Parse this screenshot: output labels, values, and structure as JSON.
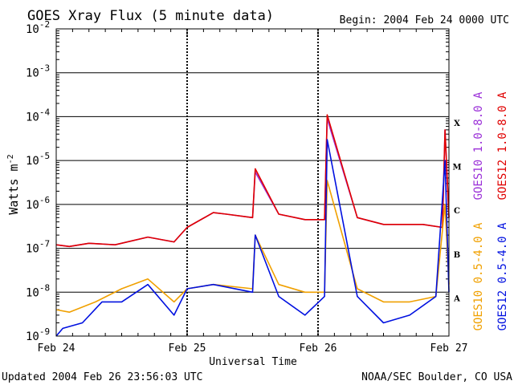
{
  "chart_data": {
    "type": "line",
    "title": "GOES Xray Flux (5 minute data)",
    "begin_label": "Begin:  2004 Feb 24 0000 UTC",
    "xlabel": "Universal Time",
    "ylabel": "Watts m",
    "ylabel_sup": "-2",
    "y_scale": "log",
    "ylim": [
      1e-09,
      0.01
    ],
    "y_ticks": [
      {
        "base": "10",
        "exp": "-2"
      },
      {
        "base": "10",
        "exp": "-3"
      },
      {
        "base": "10",
        "exp": "-4"
      },
      {
        "base": "10",
        "exp": "-5"
      },
      {
        "base": "10",
        "exp": "-6"
      },
      {
        "base": "10",
        "exp": "-7"
      },
      {
        "base": "10",
        "exp": "-8"
      },
      {
        "base": "10",
        "exp": "-9"
      }
    ],
    "xlim_days": [
      0,
      3
    ],
    "x_ticks": [
      "Feb 24",
      "Feb 25",
      "Feb 26",
      "Feb 27"
    ],
    "flare_classes": [
      {
        "label": "X",
        "value": 0.0001
      },
      {
        "label": "M",
        "value": 1e-05
      },
      {
        "label": "C",
        "value": 1e-06
      },
      {
        "label": "B",
        "value": 1e-07
      },
      {
        "label": "A",
        "value": 1e-08
      }
    ],
    "grid": true,
    "series": [
      {
        "name": "GOES10 1.0-8.0 A",
        "color": "#9b30d8",
        "x": [
          0,
          0.1,
          0.25,
          0.45,
          0.7,
          0.9,
          1.0,
          1.2,
          1.3,
          1.5,
          1.52,
          1.7,
          1.9,
          2.05,
          2.07,
          2.3,
          2.5,
          2.7,
          2.8,
          2.95,
          2.97,
          3.0
        ],
        "y": [
          1.2e-07,
          1.1e-07,
          1.3e-07,
          1.2e-07,
          1.8e-07,
          1.4e-07,
          3e-07,
          6.5e-07,
          6e-07,
          5e-07,
          5.5e-06,
          6e-07,
          4.5e-07,
          4.5e-07,
          9e-05,
          5e-07,
          3.5e-07,
          3.5e-07,
          3.5e-07,
          3e-07,
          5e-05,
          5e-07
        ]
      },
      {
        "name": "GOES12 1.0-8.0 A",
        "color": "#e00000",
        "x": [
          0,
          0.1,
          0.25,
          0.45,
          0.7,
          0.9,
          1.0,
          1.2,
          1.3,
          1.5,
          1.52,
          1.7,
          1.9,
          2.05,
          2.07,
          2.3,
          2.5,
          2.7,
          2.8,
          2.95,
          2.97,
          3.0
        ],
        "y": [
          1.2e-07,
          1.1e-07,
          1.3e-07,
          1.2e-07,
          1.8e-07,
          1.4e-07,
          3e-07,
          6.5e-07,
          6e-07,
          5e-07,
          6.5e-06,
          6e-07,
          4.5e-07,
          4.5e-07,
          0.00011,
          5e-07,
          3.5e-07,
          3.5e-07,
          3.5e-07,
          3e-07,
          5e-05,
          5e-07
        ]
      },
      {
        "name": "GOES10 0.5-4.0 A",
        "color": "#f0a000",
        "x": [
          0,
          0.1,
          0.3,
          0.5,
          0.7,
          0.9,
          1.0,
          1.2,
          1.5,
          1.52,
          1.7,
          1.9,
          2.05,
          2.07,
          2.3,
          2.5,
          2.7,
          2.9,
          2.97,
          3.0
        ],
        "y": [
          4e-09,
          3.5e-09,
          6e-09,
          1.2e-08,
          2e-08,
          6e-09,
          1.2e-08,
          1.5e-08,
          1.2e-08,
          2e-07,
          1.5e-08,
          1e-08,
          1e-08,
          3.5e-06,
          1.2e-08,
          6e-09,
          6e-09,
          8e-09,
          1e-06,
          1.5e-08
        ]
      },
      {
        "name": "GOES12 0.5-4.0 A",
        "color": "#0010e0",
        "x": [
          0,
          0.05,
          0.2,
          0.35,
          0.5,
          0.7,
          0.9,
          1.0,
          1.2,
          1.5,
          1.52,
          1.7,
          1.9,
          2.05,
          2.07,
          2.3,
          2.5,
          2.7,
          2.9,
          2.97,
          3.0
        ],
        "y": [
          1e-09,
          1.5e-09,
          2e-09,
          6e-09,
          6e-09,
          1.5e-08,
          3e-09,
          1.2e-08,
          1.5e-08,
          1e-08,
          2e-07,
          8e-09,
          3e-09,
          8e-09,
          3e-05,
          8e-09,
          2e-09,
          3e-09,
          8e-09,
          1e-05,
          1e-08
        ]
      }
    ]
  },
  "footer": {
    "updated": "Updated 2004 Feb 26 23:56:03 UTC",
    "credit": "NOAA/SEC Boulder, CO USA"
  }
}
